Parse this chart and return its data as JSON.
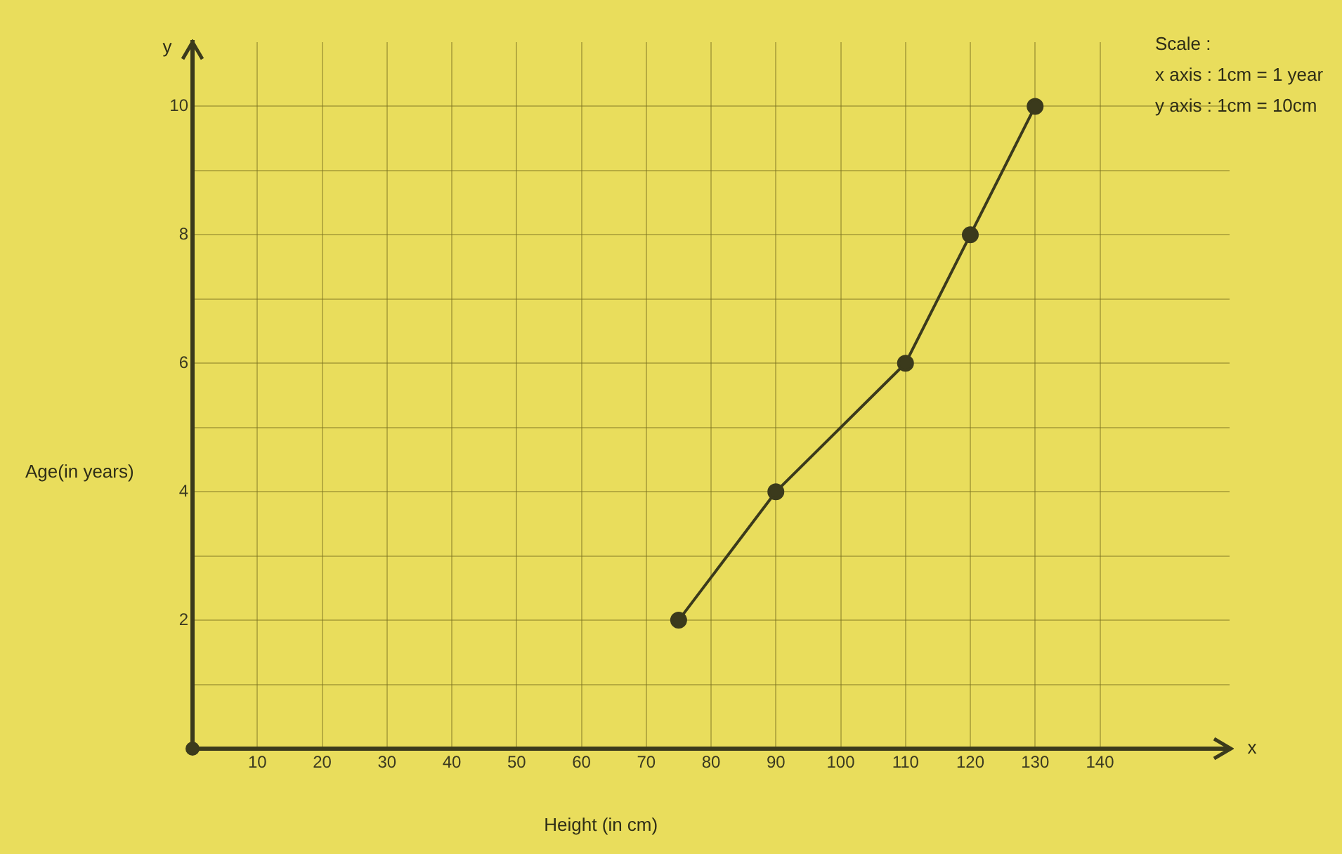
{
  "chart_data": {
    "type": "line",
    "xlabel": "Height (in cm)",
    "ylabel": "Age(in years)",
    "x": [
      75,
      90,
      110,
      120,
      130
    ],
    "values": [
      2,
      4,
      6,
      8,
      10
    ],
    "color": "#3b3a1c",
    "xlim": [
      0,
      160
    ],
    "ylim": [
      0,
      11
    ],
    "xticks": [
      10,
      20,
      30,
      40,
      50,
      60,
      70,
      80,
      90,
      100,
      110,
      120,
      130,
      140
    ],
    "yticks": [
      {
        "value": 1,
        "label": null
      },
      2,
      {
        "value": 3,
        "label": null
      },
      4,
      {
        "value": 5,
        "label": null
      },
      6,
      {
        "value": 7,
        "label": null
      },
      8,
      {
        "value": 9,
        "label": null
      },
      10
    ],
    "grid": true,
    "marker": "circle",
    "line_style": "solid",
    "annotations": [
      "Scale :",
      "x axis : 1cm = 1 year",
      "y axis : 1cm = 10cm",
      "x",
      "y"
    ]
  }
}
